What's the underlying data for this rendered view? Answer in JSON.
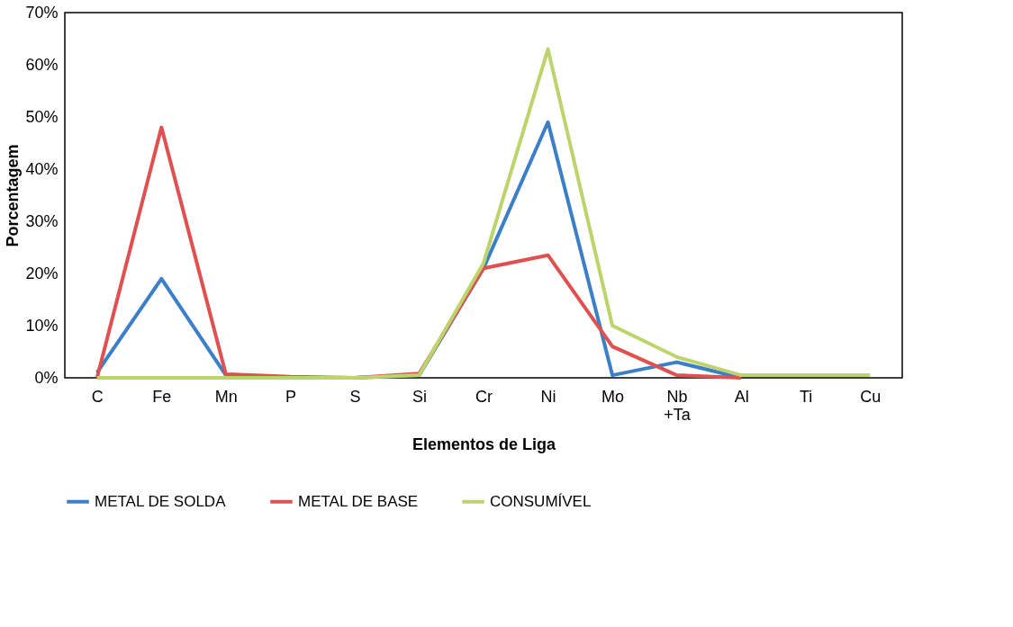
{
  "chart_data": {
    "type": "line",
    "xlabel": "Elementos de Liga",
    "ylabel": "Porcentagem",
    "categories": [
      "C",
      "Fe",
      "Mn",
      "P",
      "S",
      "Si",
      "Cr",
      "Ni",
      "Mo",
      "Nb +Ta",
      "Al",
      "Ti",
      "Cu"
    ],
    "series": [
      {
        "name": "METAL DE SOLDA",
        "color": "#3a7fc8",
        "values": [
          1,
          19,
          0.5,
          0,
          0,
          0.5,
          21,
          49,
          0.5,
          3,
          0,
          null,
          null
        ]
      },
      {
        "name": "METAL DE BASE",
        "color": "#e05050",
        "values": [
          0,
          48,
          0.7,
          0.2,
          0,
          0.8,
          21,
          23.5,
          6,
          0.5,
          0,
          null,
          null
        ]
      },
      {
        "name": "CONSUMÍVEL",
        "color": "#bcd46a",
        "values": [
          0,
          0,
          0,
          0,
          0,
          0.5,
          22,
          63,
          10,
          4,
          0.5,
          0.5,
          0.5
        ]
      }
    ],
    "ylim": [
      0,
      70
    ],
    "yticks": [
      {
        "value": 0,
        "label": "0%"
      },
      {
        "value": 10,
        "label": "10%"
      },
      {
        "value": 20,
        "label": "20%"
      },
      {
        "value": 30,
        "label": "30%"
      },
      {
        "value": 40,
        "label": "40%"
      },
      {
        "value": 50,
        "label": "50%"
      },
      {
        "value": 60,
        "label": "60%"
      },
      {
        "value": 70,
        "label": "70%"
      }
    ],
    "grid": false,
    "legend": "bottom",
    "line_style": "solid",
    "marker": "none"
  }
}
